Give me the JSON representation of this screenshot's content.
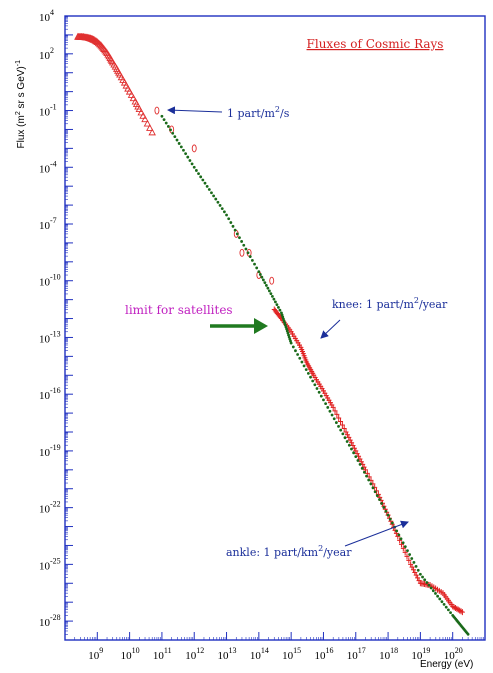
{
  "chart_data": {
    "type": "scatter",
    "title": "Fluxes of Cosmic Rays",
    "xlabel": "Energy (eV)",
    "ylabel_main": "Flux (m",
    "ylabel_sup": "2",
    "ylabel_rest": " sr s GeV)",
    "ylabel_sup2": "-1",
    "x_scale": "log",
    "y_scale": "log",
    "xlim": [
      100000000.0,
      1e+21
    ],
    "ylim": [
      1e-29,
      10000.0
    ],
    "x_ticks": [
      {
        "base": "10",
        "exp": "9"
      },
      {
        "base": "10",
        "exp": "10"
      },
      {
        "base": "10",
        "exp": "11"
      },
      {
        "base": "10",
        "exp": "12"
      },
      {
        "base": "10",
        "exp": "13"
      },
      {
        "base": "10",
        "exp": "14"
      },
      {
        "base": "10",
        "exp": "15"
      },
      {
        "base": "10",
        "exp": "16"
      },
      {
        "base": "10",
        "exp": "17"
      },
      {
        "base": "10",
        "exp": "18"
      },
      {
        "base": "10",
        "exp": "19"
      },
      {
        "base": "10",
        "exp": "20"
      }
    ],
    "y_ticks": [
      {
        "base": "10",
        "exp": "4"
      },
      {
        "base": "10",
        "exp": "2"
      },
      {
        "base": "10",
        "exp": "-1"
      },
      {
        "base": "10",
        "exp": "-4"
      },
      {
        "base": "10",
        "exp": "-7"
      },
      {
        "base": "10",
        "exp": "-10"
      },
      {
        "base": "10",
        "exp": "-13"
      },
      {
        "base": "10",
        "exp": "-16"
      },
      {
        "base": "10",
        "exp": "-19"
      },
      {
        "base": "10",
        "exp": "-22"
      },
      {
        "base": "10",
        "exp": "-25"
      },
      {
        "base": "10",
        "exp": "-28"
      }
    ],
    "series": [
      {
        "marker": "triangle",
        "color": "#e03030",
        "points": [
          [
            250000000.0,
            800
          ],
          [
            300000000.0,
            790
          ],
          [
            350000000.0,
            780
          ],
          [
            400000000.0,
            760
          ],
          [
            500000000.0,
            720
          ],
          [
            600000000.0,
            660
          ],
          [
            700000000.0,
            600
          ],
          [
            800000000.0,
            540
          ],
          [
            1000000000.0,
            420
          ],
          [
            1300000000.0,
            280
          ],
          [
            1600000000.0,
            180
          ],
          [
            2000000000.0,
            110
          ],
          [
            2500000000.0,
            60
          ],
          [
            3000000000.0,
            35
          ],
          [
            4000000000.0,
            16
          ],
          [
            5000000000.0,
            8
          ],
          [
            7000000000.0,
            3
          ],
          [
            10000000000.0,
            1
          ],
          [
            15000000000.0,
            0.3
          ],
          [
            20000000000.0,
            0.12
          ],
          [
            30000000000.0,
            0.035
          ],
          [
            50000000000.0,
            0.007
          ]
        ]
      },
      {
        "marker": "diamond",
        "color": "#e03030",
        "points": [
          [
            70000000000.0,
            0.1
          ],
          [
            200000000000.0,
            0.01
          ],
          [
            1000000000000.0,
            0.001
          ],
          [
            20000000000000.0,
            3e-08
          ],
          [
            100000000000000.0,
            2e-10
          ],
          [
            30000000000000.0,
            3e-09
          ],
          [
            250000000000000.0,
            1e-10
          ],
          [
            50000000000000.0,
            3e-09
          ]
        ]
      },
      {
        "marker": "cross",
        "color": "#e02020",
        "points": [
          [
            300000000000000.0,
            3e-12
          ],
          [
            500000000000000.0,
            1e-12
          ],
          [
            1000000000000000.0,
            2e-13
          ],
          [
            2000000000000000.0,
            3e-14
          ],
          [
            3000000000000000.0,
            5e-15
          ],
          [
            5000000000000000.0,
            1e-15
          ],
          [
            1e+16,
            1.5e-16
          ],
          [
            2e+16,
            2e-17
          ],
          [
            5e+16,
            1e-18
          ],
          [
            1e+17,
            1e-19
          ],
          [
            2e+17,
            1e-20
          ],
          [
            5e+17,
            5e-22
          ],
          [
            1e+18,
            4e-23
          ],
          [
            2e+18,
            3e-24
          ],
          [
            5e+18,
            1e-25
          ],
          [
            1e+19,
            1e-26
          ],
          [
            2e+19,
            8e-27
          ],
          [
            5e+19,
            3e-27
          ],
          [
            1e+20,
            6e-28
          ],
          [
            2e+20,
            3e-28
          ]
        ]
      },
      {
        "marker": "dot",
        "color": "#1a6a1a",
        "points": [
          [
            100000000000.0,
            0.05
          ],
          [
            1000000000000.0,
            0.0001
          ],
          [
            10000000000000.0,
            3e-07
          ],
          [
            100000000000000.0,
            3e-10
          ],
          [
            500000000000000.0,
            2e-12
          ],
          [
            1000000000000000.0,
            5e-14
          ],
          [
            1e+16,
            5e-17
          ],
          [
            1e+17,
            5e-20
          ],
          [
            1e+18,
            4e-23
          ],
          [
            1e+19,
            3e-26
          ],
          [
            1e+20,
            2e-28
          ],
          [
            3e+20,
            2e-29
          ]
        ]
      }
    ],
    "annotations": {
      "one_per_s_main": "1 part/m",
      "one_per_s_sup": "2",
      "one_per_s_rest": "/s",
      "knee_main": "knee: 1 part/m",
      "knee_sup": "2",
      "knee_rest": "/year",
      "ankle_main": "ankle: 1 part/km",
      "ankle_sup": "2",
      "ankle_rest": "/year",
      "satellites": "limit for satellites"
    },
    "colors": {
      "frame": "#2030c0",
      "annotation": "#1b2f9a",
      "satellites": "#c020c0",
      "arrow_green": "#207a20",
      "title": "#d42020"
    }
  }
}
